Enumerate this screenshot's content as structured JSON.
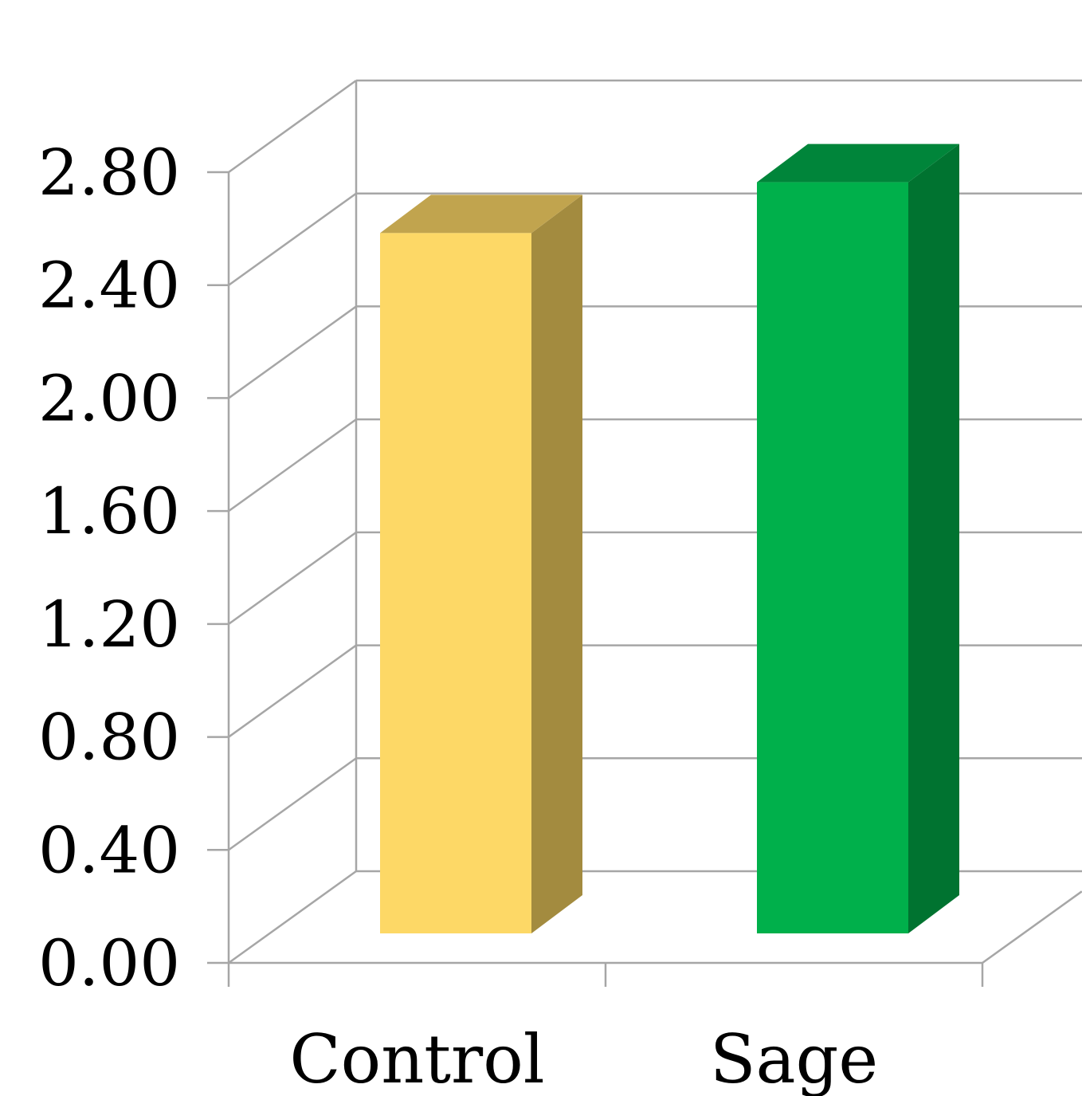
{
  "chart_data": {
    "type": "bar",
    "style": "3d-column",
    "categories": [
      "Control",
      "Sage"
    ],
    "values": [
      2.48,
      2.66
    ],
    "colors": {
      "Control": {
        "front": "#fdd866",
        "side": "#a38b3f",
        "top": "#c1a44e"
      },
      "Sage": {
        "front": "#00b04b",
        "side": "#007330",
        "top": "#00853a"
      }
    },
    "grid_color": "#a6a6a6",
    "y_ticks": [
      "0.00",
      "0.40",
      "0.80",
      "1.20",
      "1.60",
      "2.00",
      "2.40",
      "2.80"
    ],
    "ylim": [
      0,
      2.8
    ],
    "grid": true,
    "legend": false,
    "title": "",
    "xlabel": "",
    "ylabel": ""
  }
}
